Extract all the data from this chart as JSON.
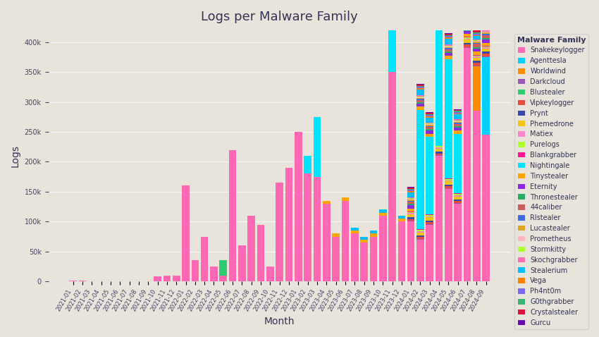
{
  "title": "Logs per Malware Family",
  "xlabel": "Month",
  "ylabel": "Logs",
  "background_color": "#E8E4DC",
  "families": [
    "Snakekeylogger",
    "Agenttesla",
    "Worldwind",
    "Darkcloud",
    "Blustealer",
    "Vipkeylogger",
    "Prynt",
    "Phemedrone",
    "Matiex",
    "Purelogs",
    "Blankgrabber",
    "Nightingale",
    "Tinystealer",
    "Eternity",
    "Thronestealer",
    "44caliber",
    "Rlstealer",
    "Lucastealer",
    "Prometheus",
    "Stormkitty",
    "Skochgrabber",
    "Stealerium",
    "Vega",
    "Ph4nt0m",
    "G0thgrabber",
    "Crystalstealer",
    "Gurcu"
  ],
  "colors": {
    "Snakekeylogger": "#FF69B4",
    "Agenttesla": "#00CFFF",
    "Worldwind": "#FF8C00",
    "Darkcloud": "#9B59B6",
    "Blustealer": "#2ECC71",
    "Vipkeylogger": "#E74C3C",
    "Prynt": "#3949AB",
    "Phemedrone": "#F1C40F",
    "Matiex": "#FF85C8",
    "Purelogs": "#ADFF2F",
    "Blankgrabber": "#FF1493",
    "Nightingale": "#00E5FF",
    "Tinystealer": "#FFA500",
    "Eternity": "#8A2BE2",
    "Thronestealer": "#27AE60",
    "44caliber": "#CD5C5C",
    "Rlstealer": "#4169E1",
    "Lucastealer": "#DAA520",
    "Prometheus": "#FFB6C1",
    "Stormkitty": "#ADFF2F",
    "Skochgrabber": "#FF6EB4",
    "Stealerium": "#00BFFF",
    "Vega": "#FF8000",
    "Ph4nt0m": "#7B68EE",
    "G0thgrabber": "#3CB371",
    "Crystalstealer": "#DC143C",
    "Gurcu": "#6A0DAD"
  },
  "months": [
    "2021-01",
    "2021-02",
    "2021-03",
    "2021-04",
    "2021-05",
    "2021-06",
    "2021-07",
    "2021-08",
    "2021-09",
    "2021-10",
    "2021-11",
    "2021-12",
    "2022-01",
    "2022-02",
    "2022-03",
    "2022-04",
    "2022-05",
    "2022-06",
    "2022-07",
    "2022-08",
    "2022-09",
    "2022-10",
    "2022-11",
    "2022-12",
    "2023-01",
    "2023-02",
    "2023-03",
    "2023-04",
    "2023-05",
    "2023-06",
    "2023-07",
    "2023-08",
    "2023-09",
    "2023-10",
    "2023-11",
    "2023-12",
    "2024-01",
    "2024-02",
    "2024-03",
    "2024-04",
    "2024-05",
    "2024-06",
    "2024-07",
    "2024-08",
    "2024-09"
  ],
  "data": {
    "Snakekeylogger": [
      1000,
      1500,
      500,
      500,
      500,
      500,
      500,
      500,
      500,
      8000,
      10000,
      10000,
      160000,
      35000,
      75000,
      25000,
      10000,
      220000,
      60000,
      110000,
      95000,
      25000,
      165000,
      190000,
      250000,
      180000,
      175000,
      130000,
      75000,
      135000,
      80000,
      65000,
      75000,
      110000,
      350000,
      100000,
      100000,
      70000,
      95000,
      210000,
      155000,
      130000,
      390000,
      285000,
      245000
    ],
    "Nightingale": [
      0,
      0,
      0,
      0,
      0,
      0,
      0,
      0,
      0,
      0,
      0,
      0,
      0,
      0,
      0,
      0,
      0,
      0,
      0,
      0,
      0,
      0,
      0,
      0,
      0,
      30000,
      100000,
      0,
      0,
      0,
      0,
      0,
      0,
      0,
      215000,
      0,
      0,
      200000,
      130000,
      200000,
      200000,
      100000,
      0,
      0,
      0
    ],
    "Agenttesla": [
      0,
      0,
      0,
      0,
      0,
      0,
      0,
      0,
      0,
      0,
      0,
      0,
      0,
      0,
      0,
      0,
      0,
      0,
      0,
      0,
      0,
      0,
      0,
      0,
      0,
      0,
      0,
      0,
      0,
      0,
      0,
      0,
      0,
      0,
      0,
      0,
      0,
      0,
      0,
      0,
      0,
      0,
      0,
      0,
      130000
    ],
    "Worldwind": [
      0,
      0,
      0,
      0,
      0,
      0,
      0,
      0,
      0,
      0,
      0,
      0,
      0,
      0,
      0,
      0,
      0,
      0,
      0,
      0,
      0,
      0,
      0,
      0,
      0,
      0,
      0,
      0,
      0,
      0,
      0,
      0,
      0,
      0,
      0,
      0,
      0,
      0,
      0,
      0,
      0,
      0,
      0,
      75000,
      0
    ],
    "Blustealer": [
      0,
      0,
      0,
      0,
      0,
      0,
      0,
      0,
      0,
      0,
      0,
      0,
      0,
      0,
      0,
      0,
      25000,
      0,
      0,
      0,
      0,
      0,
      0,
      0,
      0,
      0,
      0,
      0,
      0,
      0,
      0,
      0,
      0,
      0,
      0,
      0,
      0,
      0,
      0,
      0,
      0,
      0,
      0,
      0,
      0
    ],
    "Tinystealer": [
      0,
      0,
      0,
      0,
      0,
      0,
      0,
      0,
      0,
      0,
      0,
      0,
      0,
      0,
      0,
      0,
      0,
      0,
      0,
      0,
      0,
      0,
      0,
      0,
      0,
      0,
      0,
      5000,
      5000,
      5000,
      5000,
      5000,
      5000,
      5000,
      5000,
      5000,
      5000,
      5000,
      5000,
      5000,
      5000,
      5000,
      5000,
      5000,
      5000
    ],
    "Stealerium": [
      0,
      0,
      0,
      0,
      0,
      0,
      0,
      0,
      0,
      0,
      0,
      0,
      0,
      0,
      0,
      0,
      0,
      0,
      0,
      0,
      0,
      0,
      0,
      0,
      0,
      0,
      0,
      0,
      0,
      0,
      5000,
      5000,
      5000,
      5000,
      5000,
      5000,
      8000,
      10000,
      8000,
      5000,
      10000,
      8000,
      5000,
      5000,
      8000
    ],
    "Eternity": [
      0,
      0,
      0,
      0,
      0,
      0,
      0,
      0,
      0,
      0,
      0,
      0,
      0,
      0,
      0,
      0,
      0,
      0,
      0,
      0,
      0,
      0,
      0,
      0,
      0,
      0,
      0,
      0,
      0,
      0,
      0,
      0,
      0,
      0,
      0,
      0,
      5000,
      5000,
      5000,
      5000,
      5000,
      5000,
      5000,
      5000,
      5000
    ],
    "Phemedrone": [
      0,
      0,
      0,
      0,
      0,
      0,
      0,
      0,
      0,
      0,
      0,
      0,
      0,
      0,
      0,
      0,
      0,
      0,
      0,
      0,
      0,
      0,
      0,
      0,
      0,
      0,
      0,
      0,
      0,
      0,
      0,
      0,
      0,
      0,
      0,
      0,
      5000,
      5000,
      5000,
      5000,
      5000,
      5000,
      5000,
      5000,
      5000
    ],
    "Vipkeylogger": [
      0,
      0,
      0,
      0,
      0,
      0,
      0,
      0,
      0,
      0,
      0,
      0,
      0,
      0,
      0,
      0,
      0,
      0,
      0,
      0,
      0,
      0,
      0,
      0,
      0,
      0,
      0,
      0,
      0,
      0,
      0,
      0,
      0,
      0,
      0,
      0,
      3000,
      3000,
      3000,
      3000,
      3000,
      3000,
      5000,
      5000,
      5000
    ],
    "Prynt": [
      0,
      0,
      0,
      0,
      0,
      0,
      0,
      0,
      0,
      0,
      0,
      0,
      0,
      0,
      0,
      0,
      0,
      0,
      0,
      0,
      0,
      0,
      0,
      0,
      0,
      0,
      0,
      0,
      0,
      0,
      0,
      0,
      0,
      0,
      0,
      0,
      3000,
      3000,
      3000,
      3000,
      3000,
      3000,
      3000,
      3000,
      3000
    ],
    "Thronestealer": [
      0,
      0,
      0,
      0,
      0,
      0,
      0,
      0,
      0,
      0,
      0,
      0,
      0,
      0,
      0,
      0,
      0,
      0,
      0,
      0,
      0,
      0,
      0,
      0,
      0,
      0,
      0,
      0,
      0,
      0,
      0,
      0,
      0,
      0,
      0,
      0,
      3000,
      3000,
      3000,
      3000,
      3000,
      3000,
      3000,
      3000,
      3000
    ],
    "44caliber": [
      0,
      0,
      0,
      0,
      0,
      0,
      0,
      0,
      0,
      0,
      0,
      0,
      0,
      0,
      0,
      0,
      0,
      0,
      0,
      0,
      0,
      0,
      0,
      0,
      0,
      0,
      0,
      0,
      0,
      0,
      0,
      0,
      0,
      0,
      0,
      0,
      3000,
      3000,
      3000,
      3000,
      3000,
      3000,
      5000,
      5000,
      5000
    ],
    "Crystalstealer": [
      0,
      0,
      0,
      0,
      0,
      0,
      0,
      0,
      0,
      0,
      0,
      0,
      0,
      0,
      0,
      0,
      0,
      0,
      0,
      0,
      0,
      0,
      0,
      0,
      0,
      0,
      0,
      0,
      0,
      0,
      0,
      0,
      0,
      0,
      0,
      0,
      2000,
      2000,
      2000,
      2000,
      2000,
      2000,
      5000,
      5000,
      5000
    ],
    "Vega": [
      0,
      0,
      0,
      0,
      0,
      0,
      0,
      0,
      0,
      0,
      0,
      0,
      0,
      0,
      0,
      0,
      0,
      0,
      0,
      0,
      0,
      0,
      0,
      0,
      0,
      0,
      0,
      0,
      0,
      0,
      0,
      0,
      0,
      0,
      0,
      0,
      2000,
      2000,
      2000,
      2000,
      2000,
      2000,
      2000,
      2000,
      2000
    ],
    "Ph4nt0m": [
      0,
      0,
      0,
      0,
      0,
      0,
      0,
      0,
      0,
      0,
      0,
      0,
      0,
      0,
      0,
      0,
      0,
      0,
      0,
      0,
      0,
      0,
      0,
      0,
      0,
      0,
      0,
      0,
      0,
      0,
      0,
      0,
      0,
      0,
      0,
      0,
      2000,
      2000,
      2000,
      2000,
      2000,
      2000,
      2000,
      2000,
      2000
    ],
    "G0thgrabber": [
      0,
      0,
      0,
      0,
      0,
      0,
      0,
      0,
      0,
      0,
      0,
      0,
      0,
      0,
      0,
      0,
      0,
      0,
      0,
      0,
      0,
      0,
      0,
      0,
      0,
      0,
      0,
      0,
      0,
      0,
      0,
      0,
      0,
      0,
      0,
      0,
      2000,
      2000,
      2000,
      2000,
      2000,
      2000,
      2000,
      2000,
      2000
    ],
    "Rlstealer": [
      0,
      0,
      0,
      0,
      0,
      0,
      0,
      0,
      0,
      0,
      0,
      0,
      0,
      0,
      0,
      0,
      0,
      0,
      0,
      0,
      0,
      0,
      0,
      0,
      0,
      0,
      0,
      0,
      0,
      0,
      0,
      0,
      0,
      0,
      0,
      0,
      2000,
      2000,
      2000,
      2000,
      2000,
      2000,
      2000,
      2000,
      2000
    ],
    "Lucastealer": [
      0,
      0,
      0,
      0,
      0,
      0,
      0,
      0,
      0,
      0,
      0,
      0,
      0,
      0,
      0,
      0,
      0,
      0,
      0,
      0,
      0,
      0,
      0,
      0,
      0,
      0,
      0,
      0,
      0,
      0,
      0,
      0,
      0,
      0,
      0,
      0,
      2000,
      2000,
      2000,
      2000,
      2000,
      2000,
      2000,
      2000,
      2000
    ],
    "Skochgrabber": [
      0,
      0,
      0,
      0,
      0,
      0,
      0,
      0,
      0,
      0,
      0,
      0,
      0,
      0,
      0,
      0,
      0,
      0,
      0,
      0,
      0,
      0,
      0,
      0,
      0,
      0,
      0,
      0,
      0,
      0,
      0,
      0,
      0,
      0,
      0,
      0,
      2000,
      2000,
      2000,
      2000,
      2000,
      2000,
      2000,
      2000,
      2000
    ],
    "Matiex": [
      0,
      0,
      0,
      0,
      0,
      0,
      0,
      0,
      0,
      0,
      0,
      0,
      0,
      0,
      0,
      0,
      0,
      0,
      0,
      0,
      0,
      0,
      0,
      0,
      0,
      0,
      0,
      0,
      0,
      0,
      0,
      0,
      0,
      0,
      0,
      0,
      2000,
      2000,
      2000,
      2000,
      2000,
      2000,
      2000,
      2000,
      2000
    ],
    "Purelogs": [
      0,
      0,
      0,
      0,
      0,
      0,
      0,
      0,
      0,
      0,
      0,
      0,
      0,
      0,
      0,
      0,
      0,
      0,
      0,
      0,
      0,
      0,
      0,
      0,
      0,
      0,
      0,
      0,
      0,
      0,
      0,
      0,
      0,
      0,
      0,
      0,
      2000,
      2000,
      2000,
      2000,
      2000,
      2000,
      2000,
      2000,
      2000
    ],
    "Blankgrabber": [
      0,
      0,
      0,
      0,
      0,
      0,
      0,
      0,
      0,
      0,
      0,
      0,
      0,
      0,
      0,
      0,
      0,
      0,
      0,
      0,
      0,
      0,
      0,
      0,
      0,
      0,
      0,
      0,
      0,
      0,
      0,
      0,
      0,
      0,
      0,
      0,
      1000,
      1000,
      1000,
      1000,
      1000,
      1000,
      1000,
      1000,
      1000
    ],
    "Prometheus": [
      0,
      0,
      0,
      0,
      0,
      0,
      0,
      0,
      0,
      0,
      0,
      0,
      0,
      0,
      0,
      0,
      0,
      0,
      0,
      0,
      0,
      0,
      0,
      0,
      0,
      0,
      0,
      0,
      0,
      0,
      0,
      0,
      0,
      0,
      0,
      0,
      1000,
      1000,
      1000,
      1000,
      1000,
      1000,
      1000,
      1000,
      1000
    ],
    "Stormkitty": [
      0,
      0,
      0,
      0,
      0,
      0,
      0,
      0,
      0,
      0,
      0,
      0,
      0,
      0,
      0,
      0,
      0,
      0,
      0,
      0,
      0,
      0,
      0,
      0,
      0,
      0,
      0,
      0,
      0,
      0,
      0,
      0,
      0,
      0,
      0,
      0,
      1000,
      1000,
      1000,
      1000,
      1000,
      1000,
      1000,
      1000,
      1000
    ],
    "Darkcloud": [
      0,
      0,
      0,
      0,
      0,
      0,
      0,
      0,
      0,
      0,
      0,
      0,
      0,
      0,
      0,
      0,
      0,
      0,
      0,
      0,
      0,
      0,
      0,
      0,
      0,
      0,
      0,
      0,
      0,
      0,
      0,
      0,
      0,
      0,
      0,
      0,
      1000,
      1000,
      1000,
      1000,
      1000,
      1000,
      1000,
      1000,
      1000
    ],
    "Gurcu": [
      0,
      0,
      0,
      0,
      0,
      0,
      0,
      0,
      0,
      0,
      0,
      0,
      0,
      0,
      0,
      0,
      0,
      0,
      0,
      0,
      0,
      0,
      0,
      0,
      0,
      0,
      0,
      0,
      0,
      0,
      0,
      0,
      0,
      0,
      0,
      0,
      1000,
      1000,
      1000,
      1000,
      1000,
      1000,
      1000,
      1000,
      1000
    ]
  },
  "ylim": [
    0,
    420000
  ],
  "yticks": [
    0,
    50000,
    100000,
    150000,
    200000,
    250000,
    300000,
    350000,
    400000
  ]
}
